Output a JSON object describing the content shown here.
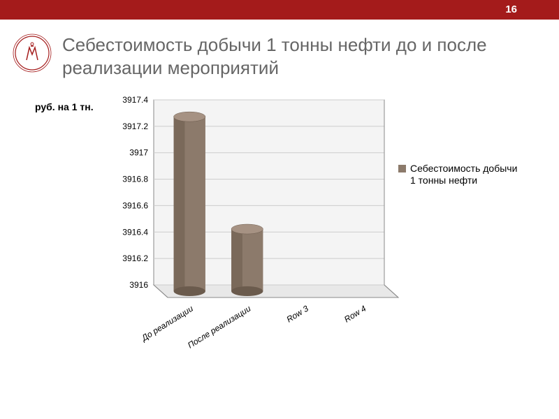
{
  "page_number": "16",
  "title": "Себестоимость добычи 1 тонны нефти до и после реализации мероприятий",
  "logo_color": "#a41b1b",
  "chart": {
    "type": "bar",
    "axis_title": "руб. на 1 тн.",
    "categories": [
      "До реализации",
      "После реализации",
      "Row 3",
      "Row 4"
    ],
    "values": [
      3917.32,
      3916.47,
      null,
      null
    ],
    "bar_top_fill": "#a69283",
    "bar_side_fill": "#6b5b4d",
    "bar_front_fill": "#8c7a6b",
    "ylim": [
      3916,
      3917.4
    ],
    "ytick_step": 0.2,
    "yticks": [
      "3916",
      "3916.2",
      "3916.4",
      "3916.6",
      "3916.8",
      "3917",
      "3917.2",
      "3917.4"
    ],
    "background_back": "#f4f4f4",
    "background_floor": "#e8e8e8",
    "grid_color": "#cccccc",
    "wall_stroke": "#8a8a8a",
    "tick_fontsize": 12,
    "xlabel_fontsize": 12
  },
  "legend": {
    "label": "Себестоимость добычи 1 тонны нефти",
    "swatch_color": "#8c7a6b"
  }
}
